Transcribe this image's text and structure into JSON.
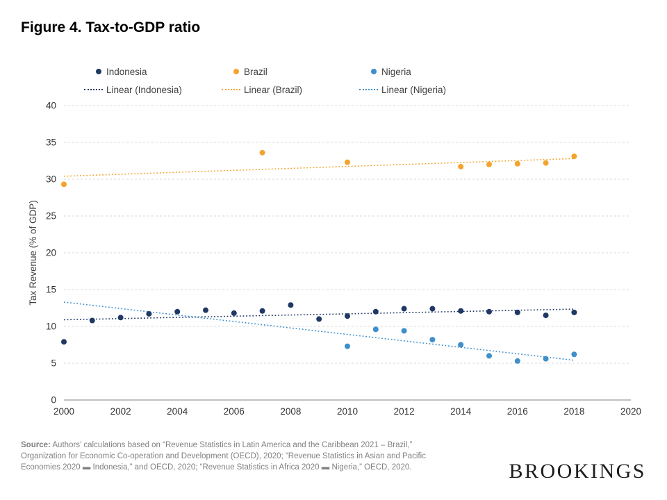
{
  "title": "Figure 4. Tax-to-GDP ratio",
  "legend": {
    "series": [
      {
        "label": "Indonesia",
        "color": "#1F3864"
      },
      {
        "label": "Brazil",
        "color": "#F4A42C"
      },
      {
        "label": "Nigeria",
        "color": "#3E8FCB"
      }
    ],
    "linear": [
      {
        "label": "Linear (Indonesia)",
        "color": "#1F3864"
      },
      {
        "label": "Linear (Brazil)",
        "color": "#F4A42C"
      },
      {
        "label": "Linear (Nigeria)",
        "color": "#3E8FCB"
      }
    ]
  },
  "chart_data": {
    "type": "scatter",
    "title": "Figure 4. Tax-to-GDP ratio",
    "xlabel": "",
    "ylabel": "Tax Revenue (% of GDP)",
    "xlim": [
      2000,
      2020
    ],
    "ylim": [
      0,
      40
    ],
    "x_ticks": [
      2000,
      2002,
      2004,
      2006,
      2008,
      2010,
      2012,
      2014,
      2016,
      2018,
      2020
    ],
    "y_ticks": [
      0,
      5,
      10,
      15,
      20,
      25,
      30,
      35,
      40
    ],
    "grid": "horizontal-dashed",
    "legend_position": "top",
    "series": [
      {
        "name": "Indonesia",
        "color": "#1F3864",
        "points": [
          [
            2000,
            7.9
          ],
          [
            2001,
            10.8
          ],
          [
            2002,
            11.2
          ],
          [
            2003,
            11.7
          ],
          [
            2004,
            12.0
          ],
          [
            2005,
            12.2
          ],
          [
            2006,
            11.8
          ],
          [
            2007,
            12.1
          ],
          [
            2008,
            12.9
          ],
          [
            2009,
            11.0
          ],
          [
            2010,
            11.4
          ],
          [
            2011,
            12.0
          ],
          [
            2012,
            12.4
          ],
          [
            2013,
            12.4
          ],
          [
            2014,
            12.1
          ],
          [
            2015,
            12.0
          ],
          [
            2016,
            11.9
          ],
          [
            2017,
            11.5
          ],
          [
            2018,
            11.9
          ]
        ]
      },
      {
        "name": "Brazil",
        "color": "#F4A42C",
        "points": [
          [
            2000,
            29.3
          ],
          [
            2007,
            33.6
          ],
          [
            2010,
            32.3
          ],
          [
            2014,
            31.7
          ],
          [
            2015,
            32.0
          ],
          [
            2016,
            32.1
          ],
          [
            2017,
            32.2
          ],
          [
            2018,
            33.1
          ]
        ]
      },
      {
        "name": "Nigeria",
        "color": "#3E8FCB",
        "points": [
          [
            2010,
            7.3
          ],
          [
            2011,
            9.6
          ],
          [
            2012,
            9.4
          ],
          [
            2013,
            8.2
          ],
          [
            2014,
            7.5
          ],
          [
            2015,
            6.0
          ],
          [
            2016,
            5.3
          ],
          [
            2017,
            5.6
          ],
          [
            2018,
            6.2
          ]
        ]
      }
    ],
    "trendlines": [
      {
        "name": "Linear (Indonesia)",
        "color": "#1F3864",
        "x": [
          2000,
          2018
        ],
        "y": [
          10.9,
          12.35
        ]
      },
      {
        "name": "Linear (Brazil)",
        "color": "#F4A42C",
        "x": [
          2000,
          2018
        ],
        "y": [
          30.4,
          32.8
        ]
      },
      {
        "name": "Linear (Nigeria)",
        "color": "#3E8FCB",
        "x": [
          2000,
          2018
        ],
        "y": [
          13.3,
          5.4
        ]
      }
    ]
  },
  "source": {
    "label": "Source:",
    "text": " Authors’ calculations based on “Revenue Statistics in Latin America and the Caribbean 2021 – Brazil,” Organization for Economic Co-operation and Development (OECD), 2020; “Revenue Statistics in Asian and Pacific Economies 2020 ▬ Indonesia,” and OECD, 2020; “Revenue Statistics in Africa 2020 ▬ Nigeria,” OECD, 2020."
  },
  "logo": "BROOKINGS"
}
